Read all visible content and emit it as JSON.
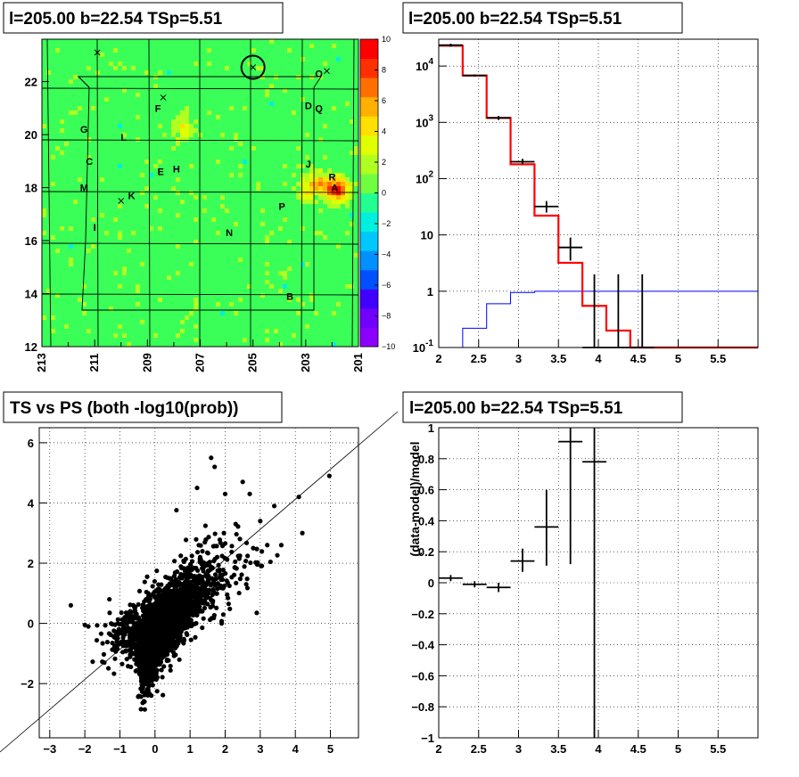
{
  "panels": {
    "skymap": {
      "title": "l=205.00 b=22.54 TSp=5.51",
      "x_ticks": [
        "213",
        "211",
        "209",
        "207",
        "205",
        "203",
        "201"
      ],
      "y_ticks": [
        "12",
        "14",
        "16",
        "18",
        "20",
        "22"
      ],
      "palette_ticks": [
        "10",
        "8",
        "6",
        "4",
        "2",
        "0",
        "−2",
        "−4",
        "−6",
        "−8",
        "−10"
      ],
      "sources": [
        {
          "label": "G",
          "l": 211.4,
          "b": 20.2
        },
        {
          "label": "L",
          "l": 209.9,
          "b": 19.9
        },
        {
          "label": "C",
          "l": 211.2,
          "b": 19.0
        },
        {
          "label": "E",
          "l": 208.5,
          "b": 18.6
        },
        {
          "label": "H",
          "l": 207.9,
          "b": 18.7
        },
        {
          "label": "M",
          "l": 211.4,
          "b": 18.0
        },
        {
          "label": "K",
          "l": 209.6,
          "b": 17.7
        },
        {
          "label": "F",
          "l": 208.6,
          "b": 21.0
        },
        {
          "label": "D",
          "l": 202.9,
          "b": 21.1
        },
        {
          "label": "Q",
          "l": 202.5,
          "b": 21.0
        },
        {
          "label": "O",
          "l": 202.5,
          "b": 22.3
        },
        {
          "label": "J",
          "l": 202.9,
          "b": 18.9
        },
        {
          "label": "R",
          "l": 202.0,
          "b": 18.4
        },
        {
          "label": "A",
          "l": 201.9,
          "b": 18.0
        },
        {
          "label": "P",
          "l": 203.9,
          "b": 17.3
        },
        {
          "label": "I",
          "l": 211.0,
          "b": 16.5
        },
        {
          "label": "N",
          "l": 205.9,
          "b": 16.3
        },
        {
          "label": "B",
          "l": 203.6,
          "b": 13.9
        }
      ],
      "crosses": [
        {
          "l": 210.9,
          "b": 23.1
        },
        {
          "l": 208.4,
          "b": 21.4
        },
        {
          "l": 210.0,
          "b": 17.5
        },
        {
          "l": 205.0,
          "b": 22.54
        },
        {
          "l": 202.2,
          "b": 22.4
        }
      ],
      "circle": {
        "l": 205.0,
        "b": 22.54
      }
    },
    "spectrum": {
      "title": "l=205.00 b=22.54 TSp=5.51",
      "x_ticks": [
        "2",
        "2.5",
        "3",
        "3.5",
        "4",
        "4.5",
        "5",
        "5.5"
      ],
      "y_ticks": [
        "10^-1",
        "1",
        "10",
        "10^2",
        "10^3",
        "10^4"
      ]
    },
    "ts_vs_ps": {
      "title": "TS vs PS (both -log10(prob))",
      "x_ticks": [
        "−3",
        "−2",
        "−1",
        "0",
        "1",
        "2",
        "3",
        "4",
        "5"
      ],
      "y_ticks": [
        "−2",
        "0",
        "2",
        "4",
        "6"
      ]
    },
    "residual": {
      "title": "l=205.00 b=22.54 TSp=5.51",
      "ylabel": "(data-model)/model",
      "x_ticks": [
        "2",
        "2.5",
        "3",
        "3.5",
        "4",
        "4.5",
        "5",
        "5.5"
      ],
      "y_ticks": [
        "−1",
        "−0.8",
        "−0.6",
        "−0.4",
        "−0.2",
        "0",
        "0.2",
        "0.4",
        "0.6",
        "0.8",
        "1"
      ]
    }
  },
  "chart_data": [
    {
      "type": "heatmap",
      "title": "l=205.00 b=22.54 TSp=5.51",
      "xlim": [
        213,
        201
      ],
      "ylim": [
        12,
        23.6
      ],
      "zlim": [
        -10,
        10
      ],
      "grid": true,
      "hotspots": [
        {
          "l": 201.9,
          "b": 18.0,
          "value": 9
        },
        {
          "l": 202.6,
          "b": 18.3,
          "value": 4
        },
        {
          "l": 203.0,
          "b": 18.0,
          "value": 3
        },
        {
          "l": 207.7,
          "b": 20.3,
          "value": 3
        }
      ]
    },
    {
      "type": "line",
      "title": "l=205.00 b=22.54 TSp=5.51",
      "xlim": [
        2,
        6
      ],
      "ylim": [
        0.1,
        30000
      ],
      "yscale": "log",
      "grid": true,
      "series": [
        {
          "style": "step",
          "color": "#ff0000",
          "edges": [
            2.0,
            2.3,
            2.6,
            2.9,
            3.2,
            3.5,
            3.8,
            4.1,
            4.4,
            6.0
          ],
          "values": [
            23000,
            6800,
            1200,
            180,
            22,
            3.2,
            0.55,
            0.2,
            0.1
          ]
        },
        {
          "style": "step",
          "color": "#0000ff",
          "edges": [
            2.0,
            2.3,
            2.6,
            2.9,
            3.2,
            3.5,
            3.8,
            4.1,
            4.4,
            6.0
          ],
          "values": [
            0.1,
            0.22,
            0.6,
            0.95,
            1.0,
            1.0,
            1.0,
            1.0,
            1.0
          ]
        },
        {
          "style": "errorbar",
          "color": "#000000",
          "x": [
            2.15,
            2.45,
            2.75,
            3.05,
            3.35,
            3.65,
            3.95,
            4.25,
            4.55
          ],
          "xerr": [
            0.15,
            0.15,
            0.15,
            0.15,
            0.15,
            0.15,
            0.15,
            0.15,
            0.15
          ],
          "y": [
            23500,
            6800,
            1200,
            200,
            32,
            6,
            0.1,
            0.1,
            0.1
          ],
          "ylo": [
            22000,
            6500,
            1100,
            180,
            25,
            3.5,
            0.1,
            0.1,
            0.1
          ],
          "yhi": [
            25000,
            7100,
            1300,
            225,
            40,
            9,
            2,
            2,
            2
          ]
        }
      ]
    },
    {
      "type": "scatter",
      "title": "TS vs PS (both -log10(prob))",
      "xlim": [
        -3.3,
        5.8
      ],
      "ylim": [
        -3.8,
        6.5
      ],
      "grid": true,
      "diagonal": "y = x",
      "clusters": [
        {
          "center": [
            0.0,
            -0.5
          ],
          "spread": [
            0.3,
            0.45
          ],
          "count": 900
        },
        {
          "center": [
            0.4,
            0.3
          ],
          "spread": [
            0.4,
            0.5
          ],
          "count": 700
        },
        {
          "center": [
            1.0,
            1.0
          ],
          "spread": [
            0.5,
            0.6
          ],
          "count": 350
        },
        {
          "center": [
            -0.2,
            -1.6
          ],
          "spread": [
            0.15,
            0.45
          ],
          "count": 120
        },
        {
          "center": [
            -0.8,
            -0.3
          ],
          "spread": [
            0.35,
            0.4
          ],
          "count": 160
        },
        {
          "center": [
            1.8,
            1.8
          ],
          "spread": [
            0.6,
            0.7
          ],
          "count": 90
        }
      ],
      "points": [
        {
          "x": 4.97,
          "y": 4.9
        },
        {
          "x": 4.1,
          "y": 4.2
        },
        {
          "x": 4.2,
          "y": 3.0
        },
        {
          "x": 3.4,
          "y": 3.9
        },
        {
          "x": 3.6,
          "y": 2.6
        },
        {
          "x": 1.6,
          "y": 5.5
        },
        {
          "x": 1.7,
          "y": 5.2
        },
        {
          "x": -2.4,
          "y": 0.6
        },
        {
          "x": -2.0,
          "y": -0.05
        },
        {
          "x": -1.9,
          "y": -0.1
        },
        {
          "x": 1.2,
          "y": 4.5
        },
        {
          "x": 2.5,
          "y": 4.7
        },
        {
          "x": 2.7,
          "y": 4.3
        },
        {
          "x": 3.0,
          "y": 3.4
        },
        {
          "x": 3.2,
          "y": 2.6
        },
        {
          "x": 2.9,
          "y": 0.35
        },
        {
          "x": -0.4,
          "y": -2.85
        },
        {
          "x": -0.3,
          "y": -2.6
        },
        {
          "x": 2.3,
          "y": 3.3
        },
        {
          "x": 2.0,
          "y": 4.3
        },
        {
          "x": 2.8,
          "y": 2.5
        },
        {
          "x": 2.6,
          "y": 1.3
        },
        {
          "x": -1.3,
          "y": 0.8
        },
        {
          "x": 1.9,
          "y": 0.0
        }
      ]
    },
    {
      "type": "scatter",
      "title": "l=205.00 b=22.54 TSp=5.51",
      "ylabel": "(data-model)/model",
      "xlim": [
        2,
        6
      ],
      "ylim": [
        -1,
        1
      ],
      "grid": true,
      "x": [
        2.15,
        2.45,
        2.75,
        3.05,
        3.35,
        3.65,
        3.95
      ],
      "xerr": [
        0.15,
        0.15,
        0.15,
        0.15,
        0.15,
        0.15,
        0.15
      ],
      "y": [
        0.03,
        -0.01,
        -0.03,
        0.14,
        0.36,
        0.91,
        0.78
      ],
      "ylo": [
        0.01,
        -0.03,
        -0.06,
        0.07,
        0.11,
        0.12,
        -1.0
      ],
      "yhi": [
        0.05,
        0.01,
        0.0,
        0.22,
        0.6,
        1.0,
        1.0
      ]
    }
  ]
}
